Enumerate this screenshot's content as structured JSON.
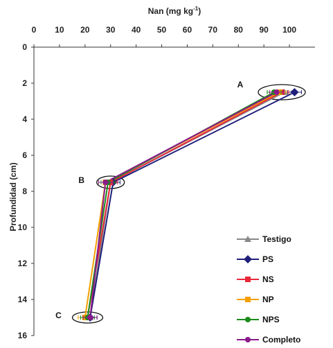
{
  "chart_data": {
    "type": "line",
    "title": "",
    "xlabel": "Nan (mg kg",
    "xlabel_sup": "-1",
    "xlabel_close": ")",
    "ylabel": "Profundidad (cm)",
    "xlim": [
      0,
      110
    ],
    "ylim": [
      0,
      16
    ],
    "y_inverted": true,
    "x_axis_position": "top",
    "grid": false,
    "x_ticks": [
      "0",
      "10",
      "20",
      "30",
      "40",
      "50",
      "60",
      "70",
      "80",
      "90",
      "100"
    ],
    "y_ticks": [
      "0",
      "2",
      "4",
      "6",
      "8",
      "10",
      "12",
      "14",
      "16"
    ],
    "legend_position": "bottom-right",
    "series": [
      {
        "name": "Testigo",
        "color": "#888888",
        "marker": "triangle",
        "x": [
          98,
          30,
          22
        ],
        "y": [
          2.5,
          7.5,
          15
        ]
      },
      {
        "name": "PS",
        "color": "#1f1f7a",
        "marker": "diamond",
        "x": [
          102,
          31,
          22
        ],
        "y": [
          2.5,
          7.5,
          15
        ]
      },
      {
        "name": "NS",
        "color": "#e8283a",
        "marker": "square",
        "x": [
          97,
          30,
          21
        ],
        "y": [
          2.5,
          7.5,
          15
        ]
      },
      {
        "name": "NP",
        "color": "#f5a000",
        "marker": "square",
        "x": [
          96,
          28,
          20
        ],
        "y": [
          2.5,
          7.5,
          15
        ]
      },
      {
        "name": "NPS",
        "color": "#1a8a1a",
        "marker": "circle",
        "x": [
          94,
          29,
          21
        ],
        "y": [
          2.5,
          7.5,
          15
        ]
      },
      {
        "name": "Completo",
        "color": "#8b1a8b",
        "marker": "circle",
        "x": [
          95,
          28,
          22
        ],
        "y": [
          2.5,
          7.5,
          15
        ]
      }
    ],
    "annotations": [
      {
        "label": "A",
        "x": 97,
        "y": 2.5
      },
      {
        "label": "B",
        "x": 30,
        "y": 7.5
      },
      {
        "label": "C",
        "x": 21,
        "y": 15
      }
    ]
  }
}
